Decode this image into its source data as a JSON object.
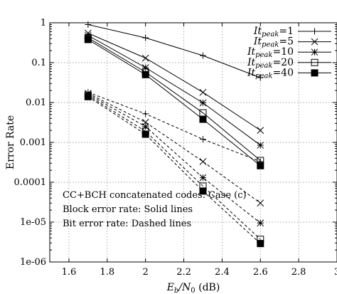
{
  "chart_data": {
    "type": "line",
    "title": "",
    "xlabel": "E_b/N_0 (dB)",
    "xlabel_parts": {
      "e": "E",
      "b": "b",
      "slash": "/",
      "n": "N",
      "zero": "0",
      "unit": " (dB)"
    },
    "ylabel": "Error Rate",
    "xlim": [
      1.5,
      3.0
    ],
    "ylim": [
      1e-06,
      1
    ],
    "yscale": "log",
    "grid": true,
    "legend_position": "top-right",
    "x_ticks": [
      "1.6",
      "1.8",
      "2",
      "2.2",
      "2.4",
      "2.6",
      "2.8",
      "3"
    ],
    "y_ticks": [
      "1",
      "0.1",
      "0.01",
      "0.001",
      "0.0001",
      "1e-05",
      "1e-06"
    ],
    "x": [
      1.7,
      2.0,
      2.3,
      2.6
    ],
    "legend": [
      {
        "label_main": "It",
        "label_sub": "peak",
        "label_value": "=1",
        "marker": "plus"
      },
      {
        "label_main": "It",
        "label_sub": "peak",
        "label_value": "=5",
        "marker": "cross"
      },
      {
        "label_main": "It",
        "label_sub": "peak",
        "label_value": "=10",
        "marker": "asterisk"
      },
      {
        "label_main": "It",
        "label_sub": "peak",
        "label_value": "=20",
        "marker": "open-square"
      },
      {
        "label_main": "It",
        "label_sub": "peak",
        "label_value": "=40",
        "marker": "filled-square"
      }
    ],
    "series": [
      {
        "metric": "block",
        "style": "solid",
        "marker": "plus",
        "values": [
          0.9,
          0.42,
          0.15,
          0.042
        ]
      },
      {
        "metric": "block",
        "style": "solid",
        "marker": "cross",
        "values": [
          0.55,
          0.13,
          0.018,
          0.002
        ]
      },
      {
        "metric": "block",
        "style": "solid",
        "marker": "asterisk",
        "values": [
          0.48,
          0.075,
          0.0098,
          0.00085
        ]
      },
      {
        "metric": "block",
        "style": "solid",
        "marker": "open-square",
        "values": [
          0.42,
          0.058,
          0.0055,
          0.00035
        ]
      },
      {
        "metric": "block",
        "style": "solid",
        "marker": "filled-square",
        "values": [
          0.38,
          0.05,
          0.0038,
          0.00026
        ]
      },
      {
        "metric": "bit",
        "style": "dashed",
        "marker": "plus",
        "values": [
          0.018,
          0.0052,
          0.0012,
          0.00033
        ]
      },
      {
        "metric": "bit",
        "style": "dashed",
        "marker": "cross",
        "values": [
          0.017,
          0.0032,
          0.00033,
          3e-05
        ]
      },
      {
        "metric": "bit",
        "style": "dashed",
        "marker": "asterisk",
        "values": [
          0.016,
          0.0025,
          0.00013,
          9.5e-06
        ]
      },
      {
        "metric": "bit",
        "style": "dashed",
        "marker": "open-square",
        "values": [
          0.015,
          0.0019,
          8e-05,
          3.7e-06
        ]
      },
      {
        "metric": "bit",
        "style": "dashed",
        "marker": "filled-square",
        "values": [
          0.014,
          0.0016,
          6e-05,
          2.9e-06
        ]
      }
    ],
    "annotations": [
      "CC+BCH concatenated codes. Case (c)",
      "Block error rate: Solid lines",
      "Bit error rate: Dashed lines"
    ]
  }
}
